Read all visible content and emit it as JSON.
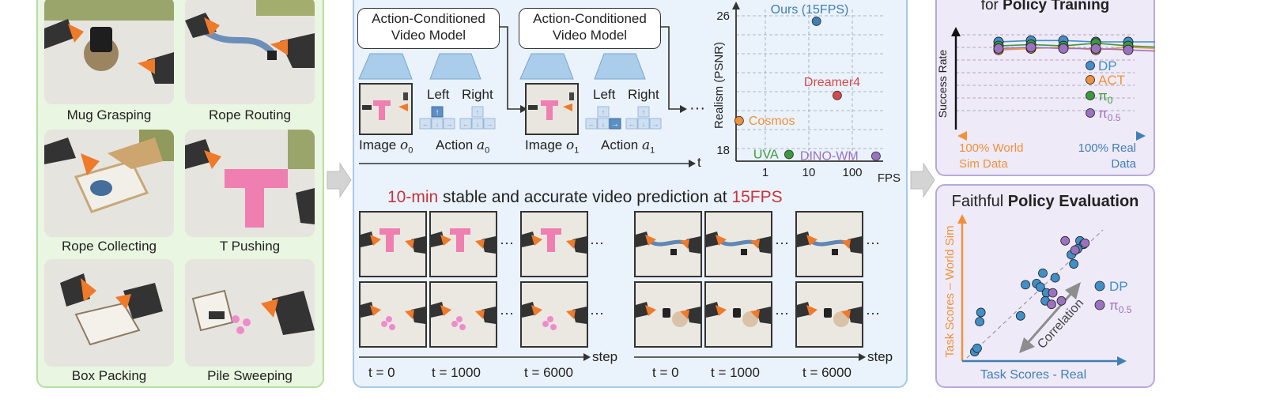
{
  "tasks": {
    "items": [
      {
        "label": "Mug Grasping"
      },
      {
        "label": "Rope Routing"
      },
      {
        "label": "Rope Collecting"
      },
      {
        "label": "T Pushing"
      },
      {
        "label": "Box Packing"
      },
      {
        "label": "Pile Sweeping"
      }
    ]
  },
  "video_model": {
    "box_label_1": "Action-Conditioned",
    "box_label_2": "Video Model",
    "left": "Left",
    "right": "Right",
    "image0": "Image",
    "image0_sym": "o",
    "image0_sub": "0",
    "action0": "Action",
    "action0_sym": "a",
    "action0_sub": "0",
    "image1": "Image",
    "image1_sym": "o",
    "image1_sub": "1",
    "action1": "Action",
    "action1_sym": "a",
    "action1_sub": "1",
    "t_axis": "t",
    "dots": "···"
  },
  "headline": {
    "part1": "10-min",
    "part2": " stable and accurate video prediction at ",
    "part3": "15FPS",
    "accent": "#c8343b"
  },
  "timeline": {
    "t0": "t = 0",
    "t1000": "t = 1000",
    "t6000": "t = 6000",
    "step": "step",
    "dots": "···"
  },
  "chart_data": [
    {
      "type": "scatter",
      "ylabel": "Realism (PSNR)",
      "xlabel": "FPS",
      "x_scale": "log",
      "x_ticks": [
        "1",
        "10",
        "100"
      ],
      "y_ticks": [
        "18",
        "26"
      ],
      "ylim": [
        17.5,
        26.5
      ],
      "points": [
        {
          "name": "Ours (15FPS)",
          "x": 15,
          "y": 25.8,
          "color": "#3f7fb5"
        },
        {
          "name": "Dreamer4",
          "x": 45,
          "y": 21.4,
          "color": "#d8484c"
        },
        {
          "name": "Cosmos",
          "x": 0.25,
          "y": 19.9,
          "color": "#f0913a"
        },
        {
          "name": "UVA",
          "x": 3.5,
          "y": 17.9,
          "color": "#3c9a3c"
        },
        {
          "name": "DINO-WM",
          "x": 350,
          "y": 17.8,
          "color": "#9b72c0"
        }
      ]
    },
    {
      "type": "line",
      "title_prefix": "for ",
      "title_bold": "Policy Training",
      "ylabel": "Success Rate",
      "x_left": "100% World",
      "x_left_2": "Sim Data",
      "x_right": "100% Real",
      "x_right_2": "Data",
      "x": [
        0,
        1,
        2,
        3,
        4,
        5
      ],
      "series": [
        {
          "name": "DP",
          "color": "#3f8fc8",
          "values": [
            0.9,
            0.91,
            0.91,
            0.9,
            0.9,
            0.9
          ]
        },
        {
          "name": "ACT",
          "color": "#f0913a",
          "values": [
            0.84,
            0.85,
            0.86,
            0.84,
            0.86,
            0.85
          ]
        },
        {
          "name": "π",
          "sub": "0",
          "color": "#3c9a3c",
          "values": [
            0.87,
            0.88,
            0.87,
            0.89,
            0.87,
            0.86
          ]
        },
        {
          "name": "π",
          "sub": "0.5",
          "color": "#9b72c0",
          "values": [
            0.85,
            0.86,
            0.85,
            0.85,
            0.84,
            0.83
          ]
        }
      ]
    },
    {
      "type": "scatter",
      "title_prefix": "Faithful ",
      "title_bold": "Policy Evaluation",
      "xlabel": "Task Scores - Real",
      "ylabel": "Task Scores – World Sim",
      "annotation": "Correlation",
      "series": [
        {
          "name": "DP",
          "color": "#3f8fc8",
          "points": [
            [
              0.05,
              0.04
            ],
            [
              0.07,
              0.07
            ],
            [
              0.09,
              0.3
            ],
            [
              0.1,
              0.38
            ],
            [
              0.42,
              0.35
            ],
            [
              0.46,
              0.62
            ],
            [
              0.55,
              0.63
            ],
            [
              0.58,
              0.6
            ],
            [
              0.6,
              0.72
            ],
            [
              0.63,
              0.55
            ],
            [
              0.62,
              0.48
            ],
            [
              0.7,
              0.68
            ],
            [
              0.83,
              0.88
            ],
            [
              0.9,
              1.0
            ],
            [
              0.93,
              0.97
            ],
            [
              0.88,
              0.93
            ],
            [
              0.85,
              0.8
            ]
          ]
        },
        {
          "name": "π",
          "sub": "0.5",
          "color": "#9b72c0",
          "points": [
            [
              0.68,
              0.55
            ],
            [
              0.75,
              0.48
            ],
            [
              0.78,
              1.0
            ],
            [
              0.86,
              0.92
            ],
            [
              0.94,
              0.98
            ],
            [
              0.67,
              0.45
            ]
          ]
        }
      ]
    }
  ]
}
